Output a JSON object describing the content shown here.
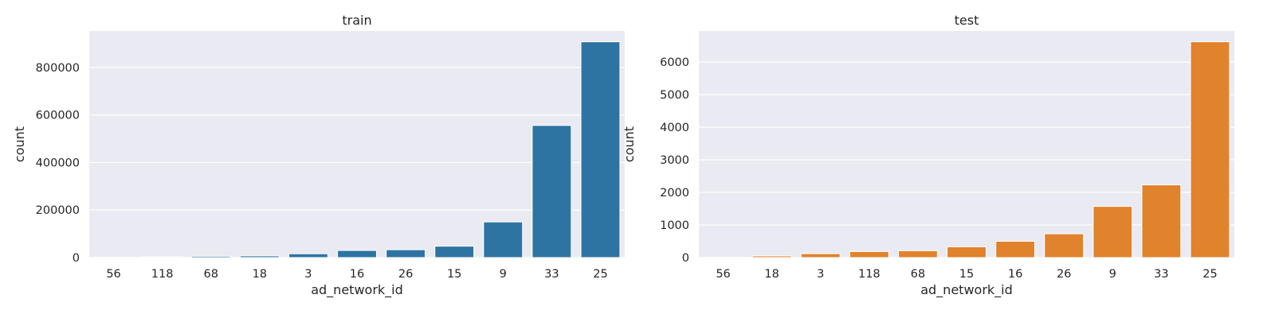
{
  "colors": {
    "background": "#eaeaf2",
    "grid": "#ffffff",
    "train_bar": "#2e74a3",
    "test_bar": "#e1822c",
    "text": "#262626"
  },
  "chart_data": [
    {
      "type": "bar",
      "title": "train",
      "xlabel": "ad_network_id",
      "ylabel": "count",
      "categories": [
        "56",
        "118",
        "68",
        "18",
        "3",
        "16",
        "26",
        "15",
        "9",
        "33",
        "25"
      ],
      "values": [
        1500,
        3500,
        5500,
        7000,
        16000,
        30000,
        33000,
        48000,
        150000,
        556000,
        908000
      ],
      "ylim": [
        0,
        953400
      ],
      "yticks": [
        0,
        200000,
        400000,
        600000,
        800000
      ],
      "ytick_labels": [
        "0",
        "200000",
        "400000",
        "600000",
        "800000"
      ],
      "grid": true
    },
    {
      "type": "bar",
      "title": "test",
      "xlabel": "ad_network_id",
      "ylabel": "count",
      "categories": [
        "56",
        "18",
        "3",
        "118",
        "68",
        "15",
        "16",
        "26",
        "9",
        "33",
        "25"
      ],
      "values": [
        10,
        50,
        120,
        185,
        210,
        330,
        500,
        730,
        1570,
        2230,
        6620
      ],
      "ylim": [
        0,
        6951
      ],
      "yticks": [
        0,
        1000,
        2000,
        3000,
        4000,
        5000,
        6000
      ],
      "ytick_labels": [
        "0",
        "1000",
        "2000",
        "3000",
        "4000",
        "5000",
        "6000"
      ],
      "grid": true
    }
  ]
}
